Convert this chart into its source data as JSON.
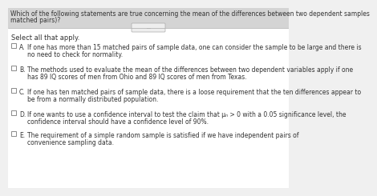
{
  "title_line1": "Which of the following statements are true concerning the mean of the differences between two dependent samples",
  "title_line2": "matched pairs)?",
  "divider_text": "...",
  "instruction": "Select all that apply.",
  "options": [
    {
      "letter": "A.",
      "text_line1": "If one has more than 15 matched pairs of sample data, one can consider the sample to be large and there is",
      "text_line2": "no need to check for normality."
    },
    {
      "letter": "B.",
      "text_line1": "The methods used to evaluate the mean of the differences between two dependent variables apply if one",
      "text_line2": "has 89 IQ scores of men from Ohio and 89 IQ scores of men from Texas."
    },
    {
      "letter": "C.",
      "text_line1": "If one has ten matched pairs of sample data, there is a loose requirement that the ten differences appear to",
      "text_line2": "be from a normally distributed population."
    },
    {
      "letter": "D.",
      "text_line1": "If one wants to use a confidence interval to test the claim that μₙ > 0 with a 0.05 significance level, the",
      "text_line2": "confidence interval should have a confidence level of 90%."
    },
    {
      "letter": "E.",
      "text_line1": "The requirement of a simple random sample is satisfied if we have independent pairs of",
      "text_line2": "convenience sampling data."
    }
  ],
  "bg_color": "#f0f0f0",
  "title_bg": "#d8d8d8",
  "title_color": "#333333",
  "text_color": "#333333",
  "title_fontsize": 5.5,
  "instruction_fontsize": 6.0,
  "option_fontsize": 5.5,
  "letter_fontsize": 5.5
}
